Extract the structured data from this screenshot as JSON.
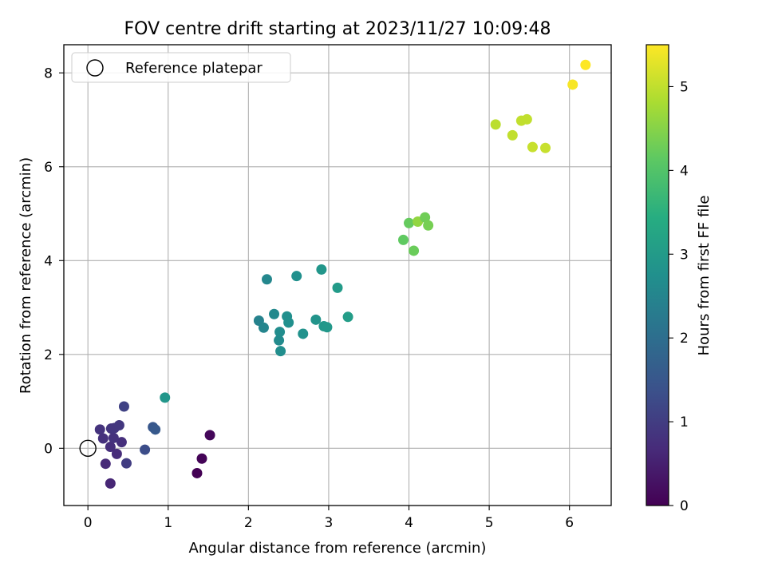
{
  "chart_data": {
    "type": "scatter",
    "title": "FOV centre drift starting at 2023/11/27 10:09:48",
    "xlabel": "Angular distance from reference (arcmin)",
    "ylabel": "Rotation from reference (arcmin)",
    "xlim": [
      -0.3,
      6.52
    ],
    "ylim": [
      -1.22,
      8.6
    ],
    "xticks": [
      0,
      1,
      2,
      3,
      4,
      5,
      6
    ],
    "yticks": [
      0,
      2,
      4,
      6,
      8
    ],
    "grid": true,
    "legend": {
      "position": "top-left",
      "entries": [
        "Reference platepar"
      ]
    },
    "reference_point": {
      "x": 0,
      "y": 0
    },
    "colorbar": {
      "label": "Hours from first FF file",
      "range": [
        0,
        5.5
      ],
      "ticks": [
        0,
        1,
        2,
        3,
        4,
        5
      ],
      "colormap": "viridis"
    },
    "points": [
      {
        "x": 1.36,
        "y": -0.53,
        "c": 0.0
      },
      {
        "x": 1.42,
        "y": -0.22,
        "c": 0.05
      },
      {
        "x": 1.52,
        "y": 0.28,
        "c": 0.1
      },
      {
        "x": 0.28,
        "y": -0.75,
        "c": 0.6
      },
      {
        "x": 0.22,
        "y": -0.33,
        "c": 0.65
      },
      {
        "x": 0.36,
        "y": -0.12,
        "c": 0.7
      },
      {
        "x": 0.28,
        "y": 0.03,
        "c": 0.72
      },
      {
        "x": 0.42,
        "y": 0.13,
        "c": 0.75
      },
      {
        "x": 0.19,
        "y": 0.21,
        "c": 0.78
      },
      {
        "x": 0.32,
        "y": 0.22,
        "c": 0.8
      },
      {
        "x": 0.15,
        "y": 0.4,
        "c": 0.82
      },
      {
        "x": 0.29,
        "y": 0.42,
        "c": 0.85
      },
      {
        "x": 0.33,
        "y": 0.43,
        "c": 0.88
      },
      {
        "x": 0.39,
        "y": 0.49,
        "c": 0.9
      },
      {
        "x": 0.48,
        "y": -0.32,
        "c": 1.0
      },
      {
        "x": 0.45,
        "y": 0.89,
        "c": 1.1
      },
      {
        "x": 0.71,
        "y": -0.03,
        "c": 1.3
      },
      {
        "x": 0.81,
        "y": 0.45,
        "c": 1.5
      },
      {
        "x": 0.84,
        "y": 0.4,
        "c": 1.55
      },
      {
        "x": 0.96,
        "y": 1.08,
        "c": 2.9
      },
      {
        "x": 2.13,
        "y": 2.72,
        "c": 2.45
      },
      {
        "x": 2.19,
        "y": 2.57,
        "c": 2.5
      },
      {
        "x": 2.23,
        "y": 3.6,
        "c": 2.55
      },
      {
        "x": 2.32,
        "y": 2.86,
        "c": 2.6
      },
      {
        "x": 2.38,
        "y": 2.3,
        "c": 2.65
      },
      {
        "x": 2.39,
        "y": 2.48,
        "c": 2.68
      },
      {
        "x": 2.4,
        "y": 2.07,
        "c": 2.7
      },
      {
        "x": 2.48,
        "y": 2.81,
        "c": 2.72
      },
      {
        "x": 2.5,
        "y": 2.68,
        "c": 2.74
      },
      {
        "x": 2.6,
        "y": 3.67,
        "c": 2.76
      },
      {
        "x": 2.68,
        "y": 2.44,
        "c": 2.8
      },
      {
        "x": 2.84,
        "y": 2.74,
        "c": 2.85
      },
      {
        "x": 2.91,
        "y": 3.81,
        "c": 2.9
      },
      {
        "x": 2.94,
        "y": 2.6,
        "c": 2.92
      },
      {
        "x": 2.98,
        "y": 2.58,
        "c": 2.95
      },
      {
        "x": 3.11,
        "y": 3.42,
        "c": 3.0
      },
      {
        "x": 3.24,
        "y": 2.8,
        "c": 3.05
      },
      {
        "x": 3.93,
        "y": 4.44,
        "c": 4.15
      },
      {
        "x": 4.0,
        "y": 4.8,
        "c": 4.2
      },
      {
        "x": 4.06,
        "y": 4.21,
        "c": 4.25
      },
      {
        "x": 4.11,
        "y": 4.83,
        "c": 4.6
      },
      {
        "x": 4.2,
        "y": 4.92,
        "c": 4.3
      },
      {
        "x": 4.24,
        "y": 4.75,
        "c": 4.35
      },
      {
        "x": 5.08,
        "y": 6.9,
        "c": 4.95
      },
      {
        "x": 5.29,
        "y": 6.67,
        "c": 5.0
      },
      {
        "x": 5.4,
        "y": 6.98,
        "c": 5.0
      },
      {
        "x": 5.47,
        "y": 7.01,
        "c": 5.0
      },
      {
        "x": 5.54,
        "y": 6.42,
        "c": 5.05
      },
      {
        "x": 5.7,
        "y": 6.4,
        "c": 5.05
      },
      {
        "x": 6.04,
        "y": 7.75,
        "c": 5.45
      },
      {
        "x": 6.2,
        "y": 8.17,
        "c": 5.5
      }
    ]
  }
}
